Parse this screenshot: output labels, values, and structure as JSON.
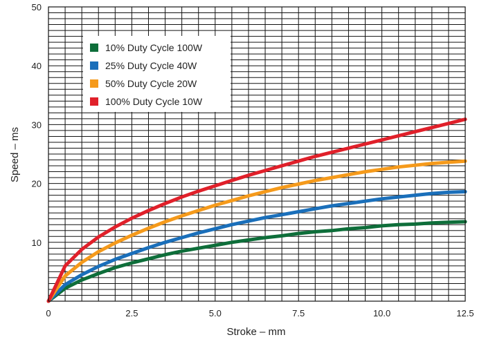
{
  "chart_data": {
    "type": "line",
    "title": "",
    "xlabel": "Stroke – mm",
    "ylabel": "Speed – ms",
    "xlim": [
      0,
      12.5
    ],
    "ylim": [
      0,
      50
    ],
    "x_ticks": [
      "0",
      "2.5",
      "5.0",
      "7.5",
      "10.0",
      "12.5"
    ],
    "y_ticks": [
      "10",
      "20",
      "30",
      "40",
      "50"
    ],
    "grid": true,
    "legend_position": "top-left",
    "series": [
      {
        "name": "10% Duty Cycle 100W",
        "color": "#0e6e3a",
        "x": [
          0,
          0.5,
          1,
          1.5,
          2,
          2.5,
          3,
          3.5,
          4,
          4.5,
          5,
          5.5,
          6,
          6.5,
          7,
          7.5,
          8,
          8.5,
          9,
          9.5,
          10,
          10.5,
          11,
          11.5,
          12,
          12.5
        ],
        "y": [
          0,
          2.2,
          3.6,
          4.7,
          5.7,
          6.5,
          7.2,
          7.9,
          8.5,
          9.0,
          9.5,
          10.0,
          10.4,
          10.8,
          11.1,
          11.5,
          11.8,
          12.0,
          12.3,
          12.5,
          12.8,
          13.0,
          13.1,
          13.3,
          13.4,
          13.5
        ]
      },
      {
        "name": "25% Duty Cycle 40W",
        "color": "#1a6fba",
        "x": [
          0,
          0.5,
          1,
          1.5,
          2,
          2.5,
          3,
          3.5,
          4,
          4.5,
          5,
          5.5,
          6,
          6.5,
          7,
          7.5,
          8,
          8.5,
          9,
          9.5,
          10,
          10.5,
          11,
          11.5,
          12,
          12.5
        ],
        "y": [
          0,
          2.8,
          4.5,
          5.9,
          7.1,
          8.1,
          9.1,
          10.0,
          10.8,
          11.6,
          12.3,
          13.0,
          13.6,
          14.2,
          14.7,
          15.2,
          15.7,
          16.2,
          16.6,
          17.0,
          17.4,
          17.7,
          18.0,
          18.3,
          18.5,
          18.6
        ]
      },
      {
        "name": "50% Duty Cycle 20W",
        "color": "#f59a1b",
        "x": [
          0,
          0.5,
          1,
          1.5,
          2,
          2.5,
          3,
          3.5,
          4,
          4.5,
          5,
          5.5,
          6,
          6.5,
          7,
          7.5,
          8,
          8.5,
          9,
          9.5,
          10,
          10.5,
          11,
          11.5,
          12,
          12.5
        ],
        "y": [
          0,
          4.3,
          6.6,
          8.4,
          9.9,
          11.2,
          12.4,
          13.5,
          14.5,
          15.4,
          16.3,
          17.1,
          17.9,
          18.6,
          19.3,
          19.9,
          20.5,
          21.0,
          21.5,
          22.0,
          22.4,
          22.8,
          23.1,
          23.4,
          23.6,
          23.8
        ]
      },
      {
        "name": "100% Duty Cycle 10W",
        "color": "#e0202a",
        "x": [
          0,
          0.5,
          1,
          1.5,
          2,
          2.5,
          3,
          3.5,
          4,
          4.5,
          5,
          5.5,
          6,
          6.5,
          7,
          7.5,
          8,
          8.5,
          9,
          9.5,
          10,
          10.5,
          11,
          11.5,
          12,
          12.5
        ],
        "y": [
          0,
          6.0,
          8.8,
          10.9,
          12.6,
          14.1,
          15.4,
          16.6,
          17.7,
          18.7,
          19.6,
          20.5,
          21.4,
          22.2,
          23.0,
          23.8,
          24.6,
          25.3,
          26.0,
          26.7,
          27.4,
          28.1,
          28.8,
          29.5,
          30.2,
          30.9
        ]
      }
    ]
  }
}
